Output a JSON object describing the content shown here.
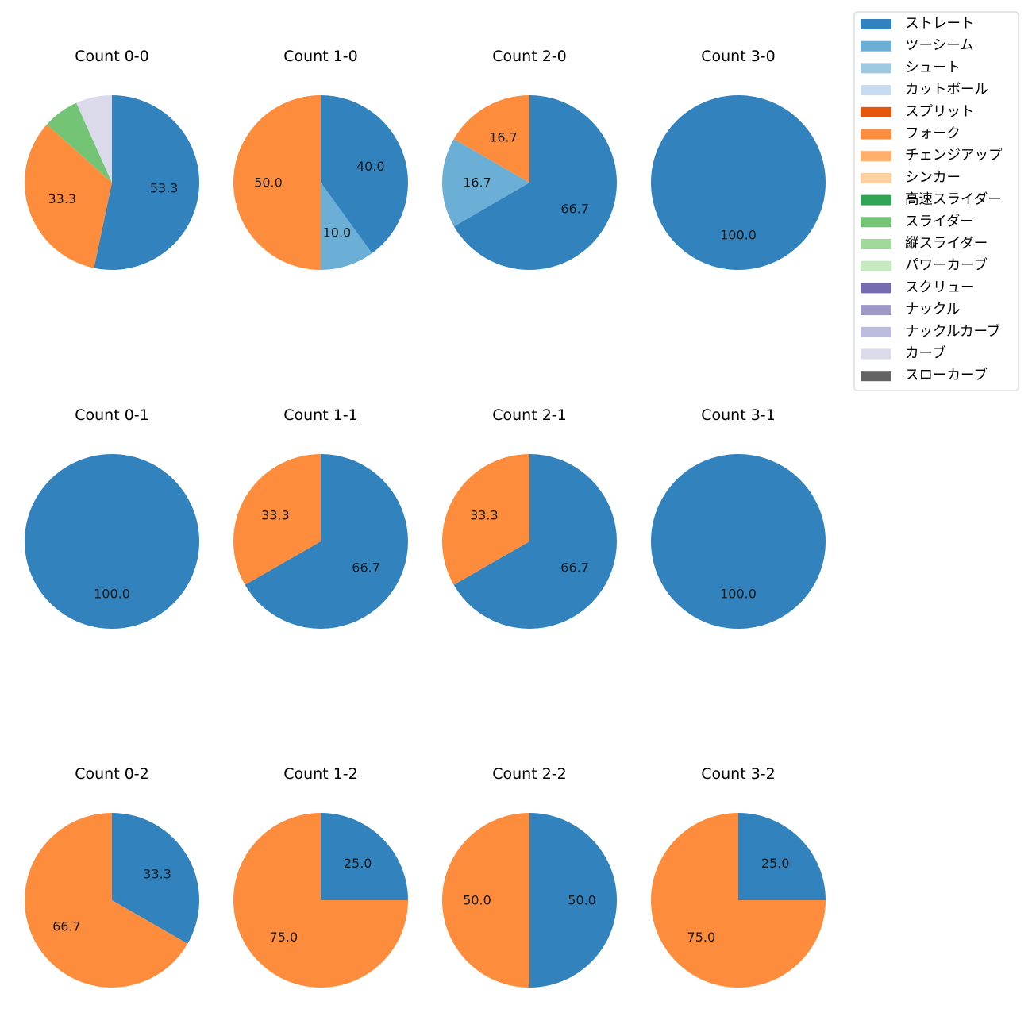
{
  "chart_data": {
    "type": "pie",
    "title": "",
    "legend": {
      "placement": "top-right",
      "entries": [
        {
          "name": "ストレート",
          "color": "#3182bd"
        },
        {
          "name": "ツーシーム",
          "color": "#6baed6"
        },
        {
          "name": "シュート",
          "color": "#9ecae1"
        },
        {
          "name": "カットボール",
          "color": "#c6dbef"
        },
        {
          "name": "スプリット",
          "color": "#e6550d"
        },
        {
          "name": "フォーク",
          "color": "#fd8d3c"
        },
        {
          "name": "チェンジアップ",
          "color": "#fdae6b"
        },
        {
          "name": "シンカー",
          "color": "#fdd0a2"
        },
        {
          "name": "高速スライダー",
          "color": "#31a354"
        },
        {
          "name": "スライダー",
          "color": "#74c476"
        },
        {
          "name": "縦スライダー",
          "color": "#a1d99b"
        },
        {
          "name": "パワーカーブ",
          "color": "#c7e9c0"
        },
        {
          "name": "スクリュー",
          "color": "#756bb1"
        },
        {
          "name": "ナックル",
          "color": "#9e9ac8"
        },
        {
          "name": "ナックルカーブ",
          "color": "#bcbddc"
        },
        {
          "name": "カーブ",
          "color": "#dadaeb"
        },
        {
          "name": "スローカーブ",
          "color": "#636363"
        }
      ]
    },
    "pies": [
      {
        "title": "Count 0-0",
        "slices": [
          {
            "pitch": "ストレート",
            "value": 53.3,
            "label": "53.3"
          },
          {
            "pitch": "フォーク",
            "value": 33.3,
            "label": "33.3"
          },
          {
            "pitch": "スライダー",
            "value": 6.7,
            "label": ""
          },
          {
            "pitch": "カーブ",
            "value": 6.7,
            "label": ""
          }
        ]
      },
      {
        "title": "Count 1-0",
        "slices": [
          {
            "pitch": "ストレート",
            "value": 40.0,
            "label": "40.0"
          },
          {
            "pitch": "ツーシーム",
            "value": 10.0,
            "label": "10.0"
          },
          {
            "pitch": "フォーク",
            "value": 50.0,
            "label": "50.0"
          }
        ]
      },
      {
        "title": "Count 2-0",
        "slices": [
          {
            "pitch": "ストレート",
            "value": 66.7,
            "label": "66.7"
          },
          {
            "pitch": "ツーシーム",
            "value": 16.7,
            "label": "16.7"
          },
          {
            "pitch": "フォーク",
            "value": 16.7,
            "label": "16.7"
          }
        ]
      },
      {
        "title": "Count 3-0",
        "slices": [
          {
            "pitch": "ストレート",
            "value": 100.0,
            "label": "100.0"
          }
        ]
      },
      {
        "title": "Count 0-1",
        "slices": [
          {
            "pitch": "ストレート",
            "value": 100.0,
            "label": "100.0"
          }
        ]
      },
      {
        "title": "Count 1-1",
        "slices": [
          {
            "pitch": "ストレート",
            "value": 66.7,
            "label": "66.7"
          },
          {
            "pitch": "フォーク",
            "value": 33.3,
            "label": "33.3"
          }
        ]
      },
      {
        "title": "Count 2-1",
        "slices": [
          {
            "pitch": "ストレート",
            "value": 66.7,
            "label": "66.7"
          },
          {
            "pitch": "フォーク",
            "value": 33.3,
            "label": "33.3"
          }
        ]
      },
      {
        "title": "Count 3-1",
        "slices": [
          {
            "pitch": "ストレート",
            "value": 100.0,
            "label": "100.0"
          }
        ]
      },
      {
        "title": "Count 0-2",
        "slices": [
          {
            "pitch": "ストレート",
            "value": 33.3,
            "label": "33.3"
          },
          {
            "pitch": "フォーク",
            "value": 66.7,
            "label": "66.7"
          }
        ]
      },
      {
        "title": "Count 1-2",
        "slices": [
          {
            "pitch": "ストレート",
            "value": 25.0,
            "label": "25.0"
          },
          {
            "pitch": "フォーク",
            "value": 75.0,
            "label": "75.0"
          }
        ]
      },
      {
        "title": "Count 2-2",
        "slices": [
          {
            "pitch": "ストレート",
            "value": 50.0,
            "label": "50.0"
          },
          {
            "pitch": "フォーク",
            "value": 50.0,
            "label": "50.0"
          }
        ]
      },
      {
        "title": "Count 3-2",
        "slices": [
          {
            "pitch": "ストレート",
            "value": 25.0,
            "label": "25.0"
          },
          {
            "pitch": "フォーク",
            "value": 75.0,
            "label": "75.0"
          }
        ]
      }
    ]
  }
}
